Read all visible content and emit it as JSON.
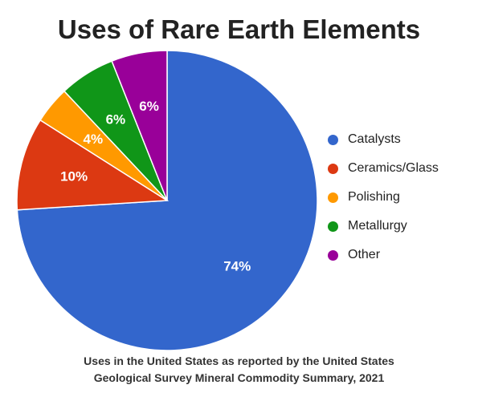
{
  "chart_data": {
    "type": "pie",
    "title": "Uses of Rare Earth Elements",
    "slices": [
      {
        "label": "Catalysts",
        "value": 74,
        "display": "74%",
        "color": "#3366cc"
      },
      {
        "label": "Ceramics/Glass",
        "value": 10,
        "display": "10%",
        "color": "#dc3912"
      },
      {
        "label": "Polishing",
        "value": 4,
        "display": "4%",
        "color": "#ff9900"
      },
      {
        "label": "Metallurgy",
        "value": 6,
        "display": "6%",
        "color": "#109618"
      },
      {
        "label": "Other",
        "value": 6,
        "display": "6%",
        "color": "#990099"
      }
    ],
    "legend_position": "right",
    "footnote_lines": [
      "Uses in the United States as reported by the United States",
      "Geological Survey Mineral Commodity Summary, 2021"
    ]
  }
}
